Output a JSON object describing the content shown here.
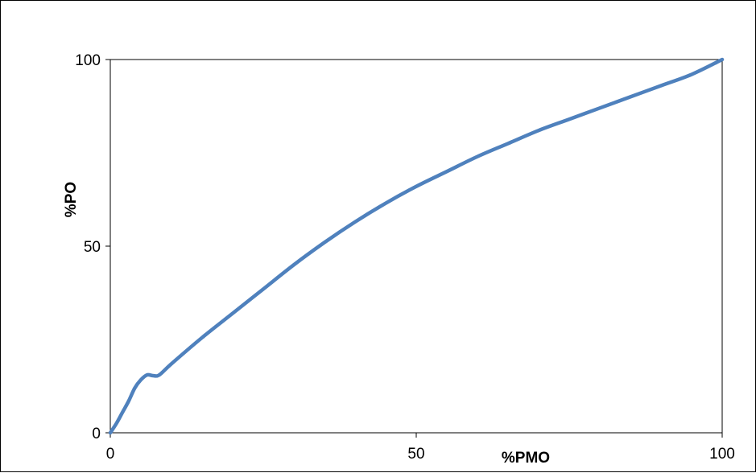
{
  "chart_data": {
    "type": "line",
    "title": "",
    "xlabel": "%PMO",
    "ylabel": "%PO",
    "xlim": [
      0,
      100
    ],
    "ylim": [
      0,
      100
    ],
    "x_ticks": [
      0,
      50,
      100
    ],
    "y_ticks": [
      0,
      50,
      100
    ],
    "grid": false,
    "legend": "none",
    "series": [
      {
        "color": "#4F81BD",
        "x": [
          0,
          1,
          2,
          3,
          4,
          5,
          6,
          7,
          8,
          10,
          15,
          20,
          25,
          30,
          35,
          40,
          45,
          50,
          55,
          60,
          65,
          70,
          75,
          80,
          85,
          90,
          95,
          100
        ],
        "y": [
          0,
          2.5,
          5.5,
          8.5,
          12,
          14.2,
          15.5,
          15.3,
          15.5,
          18.5,
          25.5,
          32,
          38.5,
          45,
          51,
          56.5,
          61.5,
          66,
          70,
          74,
          77.5,
          81,
          84,
          87,
          90,
          93,
          96,
          100
        ]
      }
    ]
  }
}
